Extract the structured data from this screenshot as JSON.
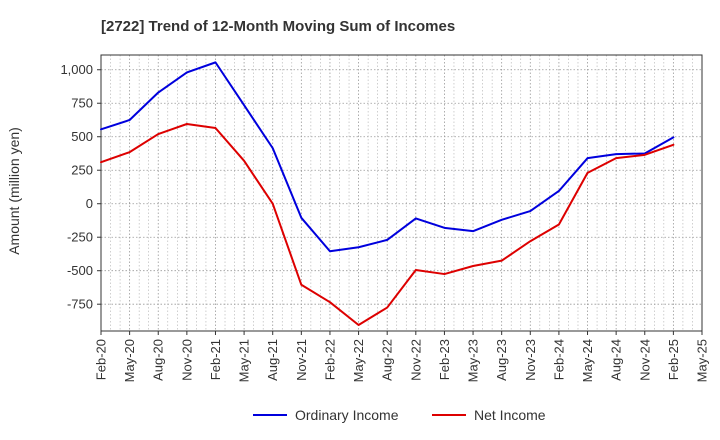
{
  "chart_data": {
    "type": "line",
    "title": "[2722]  Trend of 12-Month Moving Sum of Incomes",
    "xlabel": "",
    "ylabel": "Amount (million yen)",
    "ylim": [
      -950,
      1110
    ],
    "yticks": [
      1000,
      750,
      500,
      250,
      0,
      -250,
      -500,
      -750
    ],
    "ytick_labels": [
      "1,000",
      "750",
      "500",
      "250",
      "0",
      "-250",
      "-500",
      "-750"
    ],
    "categories": [
      "Feb-20",
      "May-20",
      "Aug-20",
      "Nov-20",
      "Feb-21",
      "May-21",
      "Aug-21",
      "Nov-21",
      "Feb-22",
      "May-22",
      "Aug-22",
      "Nov-22",
      "Feb-23",
      "May-23",
      "Aug-23",
      "Nov-23",
      "Feb-24",
      "May-24",
      "Aug-24",
      "Nov-24",
      "Feb-25",
      "May-25"
    ],
    "grid": true,
    "legend_position": "bottom-center",
    "series": [
      {
        "name": "Ordinary Income",
        "color": "#0000dd",
        "values": [
          555,
          625,
          830,
          980,
          1055,
          735,
          415,
          -105,
          -355,
          -325,
          -270,
          -110,
          -180,
          -205,
          -120,
          -55,
          95,
          340,
          370,
          375,
          495,
          null
        ]
      },
      {
        "name": "Net Income",
        "color": "#dd0000",
        "values": [
          310,
          385,
          520,
          595,
          565,
          320,
          0,
          -605,
          -735,
          -905,
          -775,
          -495,
          -525,
          -465,
          -425,
          -280,
          -155,
          230,
          340,
          365,
          440,
          null
        ]
      }
    ]
  }
}
